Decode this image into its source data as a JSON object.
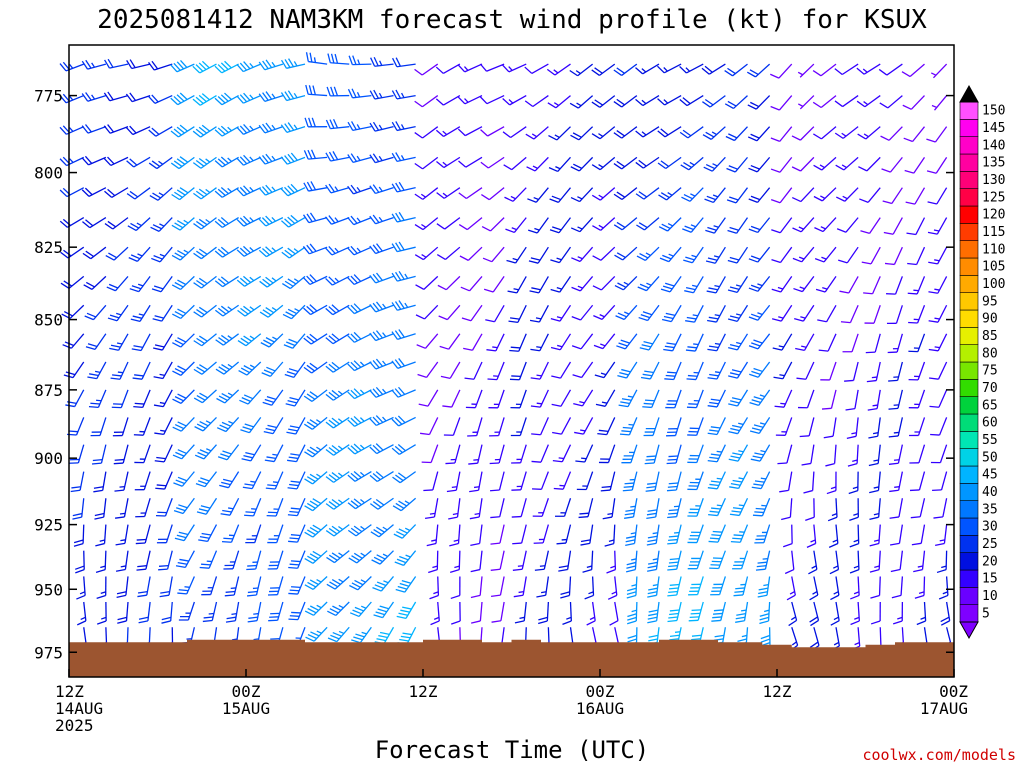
{
  "chart_data": {
    "type": "wind-barb-time-height",
    "title": "2025081412 NAM3KM forecast wind profile (kt) for KSUX",
    "xlabel": "Forecast Time (UTC)",
    "credit": "coolwx.com/models",
    "units": "kt",
    "y_axis": {
      "ticks": [
        775,
        800,
        825,
        850,
        875,
        900,
        925,
        950,
        975
      ],
      "range": [
        985,
        759
      ],
      "scale": "log"
    },
    "x_axis": {
      "range_hours": [
        0,
        60
      ],
      "ticks": [
        {
          "hour": 0,
          "line1": "12Z",
          "line2": "14AUG",
          "line3": "2025"
        },
        {
          "hour": 12,
          "line1": "00Z",
          "line2": "15AUG",
          "line3": ""
        },
        {
          "hour": 24,
          "line1": "12Z",
          "line2": "",
          "line3": ""
        },
        {
          "hour": 36,
          "line1": "00Z",
          "line2": "16AUG",
          "line3": ""
        },
        {
          "hour": 48,
          "line1": "12Z",
          "line2": "",
          "line3": ""
        },
        {
          "hour": 60,
          "line1": "00Z",
          "line2": "17AUG",
          "line3": ""
        }
      ]
    },
    "colorbar": {
      "levels": [
        5,
        10,
        15,
        20,
        25,
        30,
        35,
        40,
        45,
        50,
        55,
        60,
        65,
        70,
        75,
        80,
        85,
        90,
        95,
        100,
        105,
        110,
        115,
        120,
        125,
        130,
        135,
        140,
        145,
        150
      ],
      "colors": [
        "#7f00ff",
        "#6a00ff",
        "#3300ff",
        "#0010e0",
        "#0032f0",
        "#0055ff",
        "#0078ff",
        "#0096ff",
        "#00b4ff",
        "#00d2e6",
        "#00e6b4",
        "#00dc78",
        "#00d23c",
        "#32dc00",
        "#78e600",
        "#b4f000",
        "#e6f000",
        "#ffdc00",
        "#ffc800",
        "#ffaa00",
        "#ff8c00",
        "#ff6e00",
        "#ff3c00",
        "#ff0000",
        "#ff0046",
        "#ff0078",
        "#ff00a0",
        "#ff00c8",
        "#ff00f0",
        "#ff50ff"
      ]
    },
    "surface_pressure_mb": [
      {
        "hour": 0,
        "mb": 971
      },
      {
        "hour": 4,
        "mb": 971
      },
      {
        "hour": 8,
        "mb": 970
      },
      {
        "hour": 12,
        "mb": 970
      },
      {
        "hour": 16,
        "mb": 971
      },
      {
        "hour": 20,
        "mb": 971
      },
      {
        "hour": 24,
        "mb": 970
      },
      {
        "hour": 28,
        "mb": 971
      },
      {
        "hour": 30,
        "mb": 970
      },
      {
        "hour": 32,
        "mb": 971
      },
      {
        "hour": 36,
        "mb": 971
      },
      {
        "hour": 40,
        "mb": 970
      },
      {
        "hour": 44,
        "mb": 971
      },
      {
        "hour": 47,
        "mb": 972
      },
      {
        "hour": 49,
        "mb": 973
      },
      {
        "hour": 52,
        "mb": 973
      },
      {
        "hour": 54,
        "mb": 972
      },
      {
        "hour": 56,
        "mb": 971
      },
      {
        "hour": 58,
        "mb": 971
      },
      {
        "hour": 60,
        "mb": 970
      }
    ],
    "barb_levels_mb": [
      765,
      775,
      785,
      795,
      805,
      815,
      825,
      835,
      845,
      855,
      865,
      875,
      885,
      895,
      905,
      915,
      925,
      935,
      945,
      955,
      965
    ],
    "wind_regimes": [
      {
        "hours": [
          0,
          8
        ],
        "speed_upper_kt": 22,
        "speed_lower_kt": 18,
        "dir_upper_deg": 250,
        "dir_lower_deg": 175
      },
      {
        "hours": [
          8,
          17
        ],
        "speed_upper_kt": 38,
        "speed_lower_kt": 25,
        "dir_upper_deg": 250,
        "dir_lower_deg": 195
      },
      {
        "hours": [
          17,
          24
        ],
        "speed_upper_kt": 25,
        "speed_lower_kt": 38,
        "dir_upper_deg": 270,
        "dir_lower_deg": 215
      },
      {
        "hours": [
          24,
          30
        ],
        "speed_upper_kt": 10,
        "speed_lower_kt": 12,
        "dir_upper_deg": 240,
        "dir_lower_deg": 180
      },
      {
        "hours": [
          30,
          38
        ],
        "speed_upper_kt": 15,
        "speed_lower_kt": 15,
        "dir_upper_deg": 240,
        "dir_lower_deg": 175
      },
      {
        "hours": [
          38,
          48
        ],
        "speed_upper_kt": 18,
        "speed_lower_kt": 40,
        "dir_upper_deg": 235,
        "dir_lower_deg": 185
      },
      {
        "hours": [
          48,
          60
        ],
        "speed_upper_kt": 10,
        "speed_lower_kt": 15,
        "dir_upper_deg": 230,
        "dir_lower_deg": 170
      }
    ]
  }
}
